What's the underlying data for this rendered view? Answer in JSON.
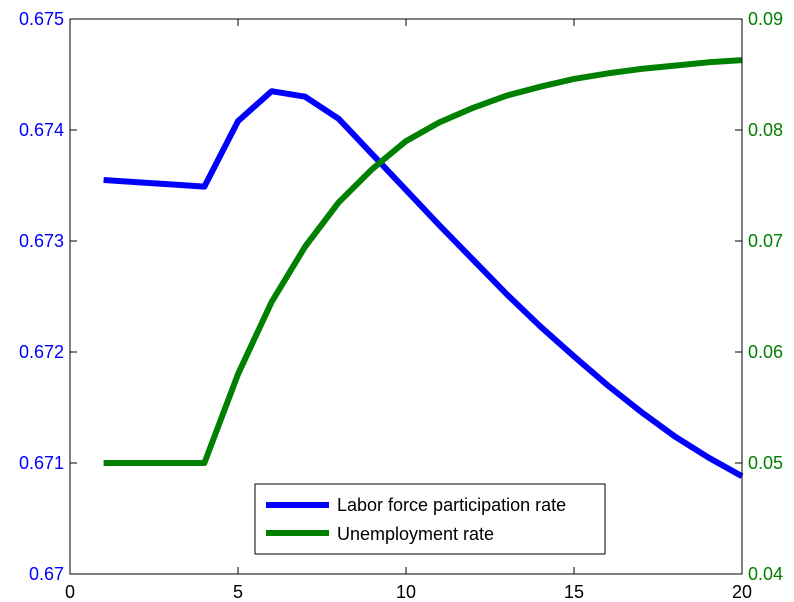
{
  "chart_data": {
    "type": "line",
    "x": [
      1,
      2,
      3,
      4,
      5,
      6,
      7,
      8,
      9,
      10,
      11,
      12,
      13,
      14,
      15,
      16,
      17,
      18,
      19,
      20
    ],
    "xlim": [
      0,
      20
    ],
    "xticks": [
      "0",
      "5",
      "10",
      "15",
      "20"
    ],
    "y_left": {
      "lim": [
        0.67,
        0.675
      ],
      "ticks": [
        "0.67",
        "0.671",
        "0.672",
        "0.673",
        "0.674",
        "0.675"
      ],
      "color": "#0000ff"
    },
    "y_right": {
      "lim": [
        0.04,
        0.09
      ],
      "ticks": [
        "0.04",
        "0.05",
        "0.06",
        "0.07",
        "0.08",
        "0.09"
      ],
      "color": "#008000"
    },
    "series": [
      {
        "name": "Labor force participation rate",
        "axis": "left",
        "color": "#0000ff",
        "values": [
          0.67355,
          0.67353,
          0.67351,
          0.67349,
          0.67408,
          0.67435,
          0.6743,
          0.6741,
          0.67378,
          0.67346,
          0.67314,
          0.67283,
          0.67252,
          0.67223,
          0.67196,
          0.6717,
          0.67146,
          0.67124,
          0.67105,
          0.67088
        ]
      },
      {
        "name": "Unemployment rate",
        "axis": "right",
        "color": "#008000",
        "values": [
          0.05,
          0.05,
          0.05,
          0.05,
          0.058,
          0.0645,
          0.0695,
          0.0735,
          0.0765,
          0.079,
          0.0807,
          0.082,
          0.0831,
          0.0839,
          0.0846,
          0.0851,
          0.0855,
          0.0858,
          0.0861,
          0.0863
        ]
      }
    ],
    "legend": {
      "position": "bottom-center"
    },
    "grid": false
  }
}
